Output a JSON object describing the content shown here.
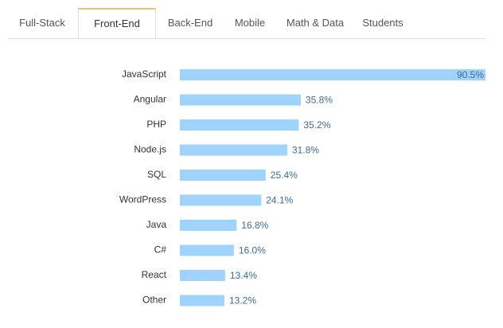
{
  "tabs": [
    "Full-Stack",
    "Front-End",
    "Back-End",
    "Mobile",
    "Math & Data",
    "Students"
  ],
  "active_tab": 1,
  "chart_data": {
    "type": "bar",
    "orientation": "horizontal",
    "categories": [
      "JavaScript",
      "Angular",
      "PHP",
      "Node.js",
      "SQL",
      "WordPress",
      "Java",
      "C#",
      "React",
      "Other"
    ],
    "values": [
      90.5,
      35.8,
      35.2,
      31.8,
      25.4,
      24.1,
      16.8,
      16.0,
      13.4,
      13.2
    ],
    "value_labels": [
      "90.5%",
      "35.8%",
      "35.2%",
      "31.8%",
      "25.4%",
      "24.1%",
      "16.8%",
      "16.0%",
      "13.4%",
      "13.2%"
    ],
    "color": "#9fd3fb"
  }
}
